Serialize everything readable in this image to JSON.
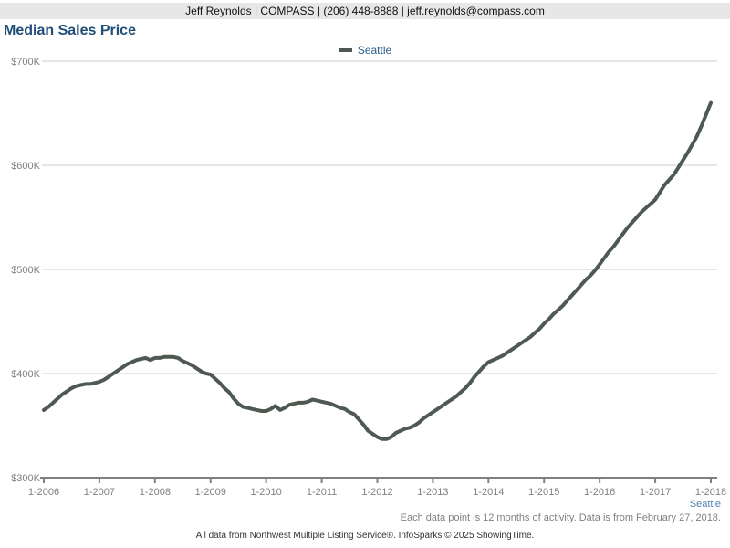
{
  "header": {
    "contact_line": "Jeff Reynolds | COMPASS | (206) 448-8888 | jeff.reynolds@compass.com"
  },
  "title": "Median Sales Price",
  "legend": {
    "label": "Seattle",
    "swatch_color": "#4e5952"
  },
  "chart_data": {
    "type": "line",
    "title": "Median Sales Price",
    "x_start": "2006-01",
    "x_interval": "monthly",
    "x_tick_labels": [
      "1-2006",
      "1-2007",
      "1-2008",
      "1-2009",
      "1-2010",
      "1-2011",
      "1-2012",
      "1-2013",
      "1-2014",
      "1-2015",
      "1-2016",
      "1-2017",
      "1-2018"
    ],
    "x_tick_every_n_points": 12,
    "y_ticks": [
      300,
      400,
      500,
      600,
      700
    ],
    "y_tick_labels": [
      "$300K",
      "$400K",
      "$500K",
      "$600K",
      "$700K"
    ],
    "ylim": [
      300,
      700
    ],
    "y_unit": "USD thousands",
    "grid": "horizontal",
    "legend_position": "top-center",
    "series": [
      {
        "name": "Seattle",
        "color": "#4e5952",
        "values": [
          365,
          368,
          372,
          376,
          380,
          383,
          386,
          388,
          389,
          390,
          390,
          391,
          392,
          394,
          397,
          400,
          403,
          406,
          409,
          411,
          413,
          414,
          415,
          413,
          415,
          415,
          416,
          416,
          416,
          415,
          412,
          410,
          408,
          405,
          402,
          400,
          399,
          395,
          391,
          386,
          382,
          376,
          371,
          368,
          367,
          366,
          365,
          364,
          364,
          366,
          369,
          365,
          367,
          370,
          371,
          372,
          372,
          373,
          375,
          374,
          373,
          372,
          371,
          369,
          367,
          366,
          363,
          361,
          356,
          351,
          345,
          342,
          339,
          337,
          337,
          339,
          343,
          345,
          347,
          348,
          350,
          353,
          357,
          360,
          363,
          366,
          369,
          372,
          375,
          378,
          382,
          386,
          391,
          397,
          402,
          407,
          411,
          413,
          415,
          417,
          420,
          423,
          426,
          429,
          432,
          435,
          439,
          443,
          448,
          452,
          457,
          461,
          465,
          470,
          475,
          480,
          485,
          490,
          494,
          499,
          505,
          511,
          517,
          522,
          528,
          534,
          540,
          545,
          550,
          555,
          559,
          563,
          567,
          574,
          581,
          586,
          591,
          598,
          605,
          612,
          620,
          628,
          638,
          649,
          660
        ]
      }
    ]
  },
  "footnotes": {
    "series_label": "Seattle",
    "data_note": "Each data point is 12 months of activity. Data is from February 27, 2018.",
    "attribution": "All data from Northwest Multiple Listing Service®. InfoSparks © 2025 ShowingTime."
  },
  "colors": {
    "title": "#1f4e79",
    "contact_bar_bg": "#e7e7e7",
    "gridline": "#cccccc",
    "axis": "#808080",
    "axis_label": "#808080",
    "line": "#4e5952",
    "legend_text": "#2a5e8c",
    "series_footnote_text": "#4e81b0"
  }
}
